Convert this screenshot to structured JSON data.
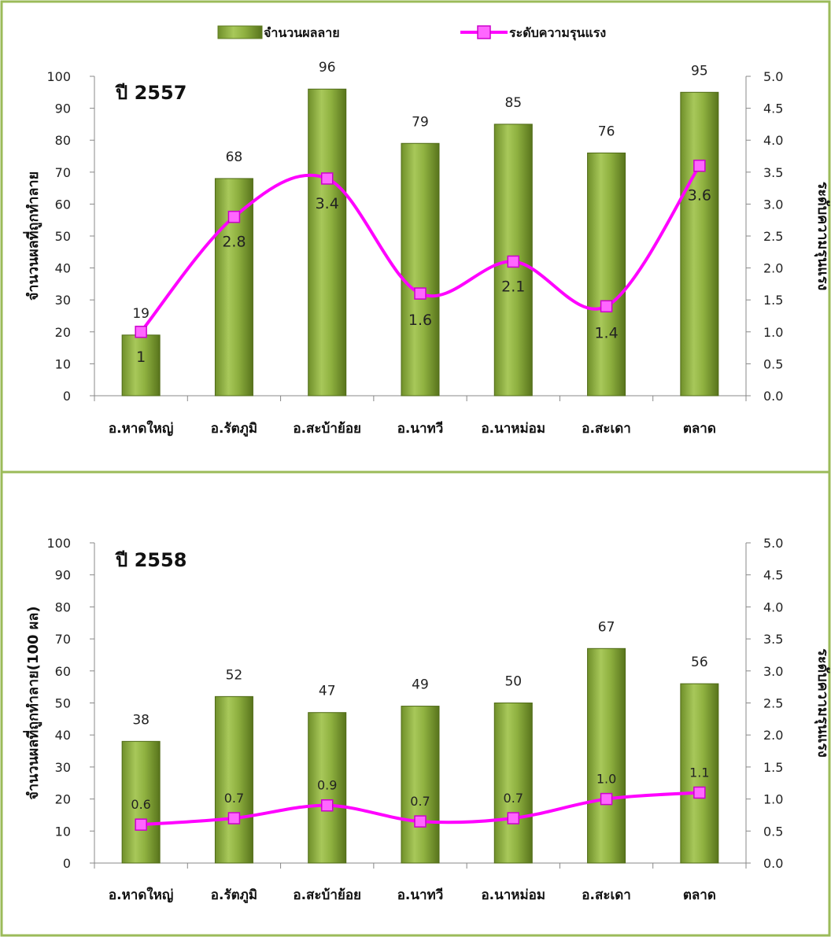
{
  "legend": {
    "bar_label": "จำนวนผลลาย",
    "line_label": "ระดับความรุนแรง"
  },
  "colors": {
    "border": "#9bbb59",
    "bar_light": "#b5cf6a",
    "bar_mid": "#86a43a",
    "bar_dark": "#5d7a1f",
    "line": "#ff00ff",
    "marker_fill": "#ff66ff",
    "marker_stroke": "#cc00cc"
  },
  "chart_data": [
    {
      "type": "bar",
      "title": "ปี 2557",
      "categories": [
        "อ.หาดใหญ่",
        "อ.รัตภูมิ",
        "อ.สะบ้าย้อย",
        "อ.นาทวี",
        "อ.นาหม่อม",
        "อ.สะเดา",
        "ตลาด"
      ],
      "ylabel": "จำนวนผลที่ถูกทำลาย",
      "y2label": "ระดับความรุนแรง",
      "ylim": [
        0,
        100
      ],
      "y2lim": [
        0,
        5
      ],
      "yticks": [
        "0",
        "10",
        "20",
        "30",
        "40",
        "50",
        "60",
        "70",
        "80",
        "90",
        "100"
      ],
      "y2ticks": [
        "0.0",
        "0.5",
        "1.0",
        "1.5",
        "2.0",
        "2.5",
        "3.0",
        "3.5",
        "4.0",
        "4.5",
        "5.0"
      ],
      "series": [
        {
          "name": "จำนวนผลลาย",
          "type": "bar",
          "axis": "left",
          "values": [
            19,
            68,
            96,
            79,
            85,
            76,
            95
          ],
          "labels": [
            "19",
            "68",
            "96",
            "79",
            "85",
            "76",
            "95"
          ]
        },
        {
          "name": "ระดับความรุนแรง",
          "type": "line",
          "axis": "right",
          "values": [
            1.0,
            2.8,
            3.4,
            1.6,
            2.1,
            1.4,
            3.6
          ],
          "labels": [
            "1",
            "2.8",
            "3.4",
            "1.6",
            "2.1",
            "1.4",
            "3.6"
          ]
        }
      ],
      "grid": false,
      "legend_position": "top"
    },
    {
      "type": "bar",
      "title": "ปี 2558",
      "categories": [
        "อ.หาดใหญ่",
        "อ.รัตภูมิ",
        "อ.สะบ้าย้อย",
        "อ.นาทวี",
        "อ.นาหม่อม",
        "อ.สะเดา",
        "ตลาด"
      ],
      "ylabel": "จำนวนผลที่ถูกทำลาย(100 ผล)",
      "y2label": "ระดับความรุนแรง",
      "ylim": [
        0,
        100
      ],
      "y2lim": [
        0,
        5
      ],
      "yticks": [
        "0",
        "10",
        "20",
        "30",
        "40",
        "50",
        "60",
        "70",
        "80",
        "90",
        "100"
      ],
      "y2ticks": [
        "0.0",
        "0.5",
        "1.0",
        "1.5",
        "2.0",
        "2.5",
        "3.0",
        "3.5",
        "4.0",
        "4.5",
        "5.0"
      ],
      "series": [
        {
          "name": "จำนวนผลลาย",
          "type": "bar",
          "axis": "left",
          "values": [
            38,
            52,
            47,
            49,
            50,
            67,
            56
          ],
          "labels": [
            "38",
            "52",
            "47",
            "49",
            "50",
            "67",
            "56"
          ]
        },
        {
          "name": "ระดับความรุนแรง",
          "type": "line",
          "axis": "right",
          "values": [
            0.6,
            0.7,
            0.9,
            0.65,
            0.7,
            1.0,
            1.1
          ],
          "labels": [
            "0.6",
            "0.7",
            "0.9",
            "0.7",
            "0.7",
            "1.0",
            "1.1"
          ]
        }
      ],
      "grid": false,
      "legend_position": "none"
    }
  ]
}
